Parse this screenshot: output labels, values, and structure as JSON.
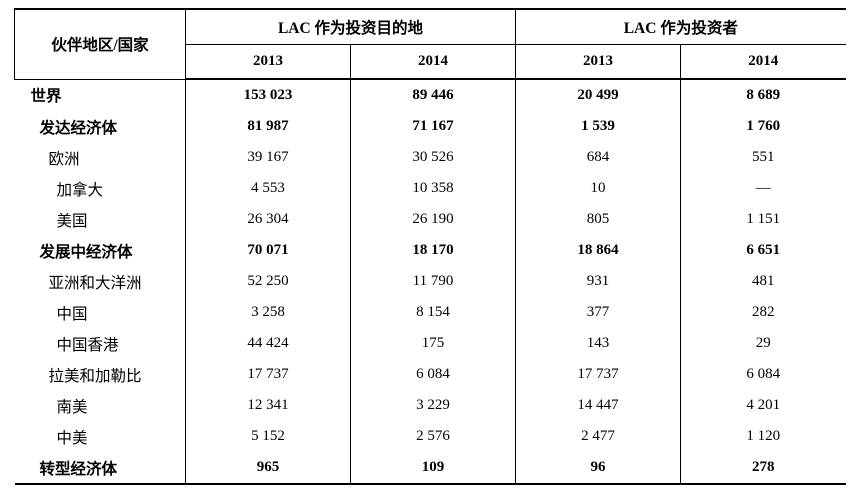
{
  "table": {
    "corner_header": "伙伴地区/国家",
    "groups": [
      {
        "label": "LAC 作为投资目的地"
      },
      {
        "label": "LAC 作为投资者"
      }
    ],
    "years": [
      "2013",
      "2014",
      "2013",
      "2014"
    ],
    "rows": [
      {
        "label": "世界",
        "values": [
          "153 023",
          "89 446",
          "20 499",
          "8 689"
        ]
      },
      {
        "label": "发达经济体",
        "values": [
          "81 987",
          "71 167",
          "1 539",
          "1 760"
        ]
      },
      {
        "label": "欧洲",
        "values": [
          "39 167",
          "30 526",
          "684",
          "551"
        ]
      },
      {
        "label": "加拿大",
        "values": [
          "4 553",
          "10 358",
          "10",
          "—"
        ]
      },
      {
        "label": "美国",
        "values": [
          "26 304",
          "26 190",
          "805",
          "1 151"
        ]
      },
      {
        "label": "发展中经济体",
        "values": [
          "70 071",
          "18 170",
          "18 864",
          "6 651"
        ]
      },
      {
        "label": "亚洲和大洋洲",
        "values": [
          "52 250",
          "11 790",
          "931",
          "481"
        ]
      },
      {
        "label": "中国",
        "values": [
          "3 258",
          "8 154",
          "377",
          "282"
        ]
      },
      {
        "label": "中国香港",
        "values": [
          "44 424",
          "175",
          "143",
          "29"
        ]
      },
      {
        "label": "拉美和加勒比",
        "values": [
          "17 737",
          "6 084",
          "17 737",
          "6 084"
        ]
      },
      {
        "label": "南美",
        "values": [
          "12 341",
          "3 229",
          "14 447",
          "4 201"
        ]
      },
      {
        "label": "中美",
        "values": [
          "5 152",
          "2 576",
          "2 477",
          "1 120"
        ]
      },
      {
        "label": "转型经济体",
        "values": [
          "965",
          "109",
          "96",
          "278"
        ]
      }
    ]
  }
}
